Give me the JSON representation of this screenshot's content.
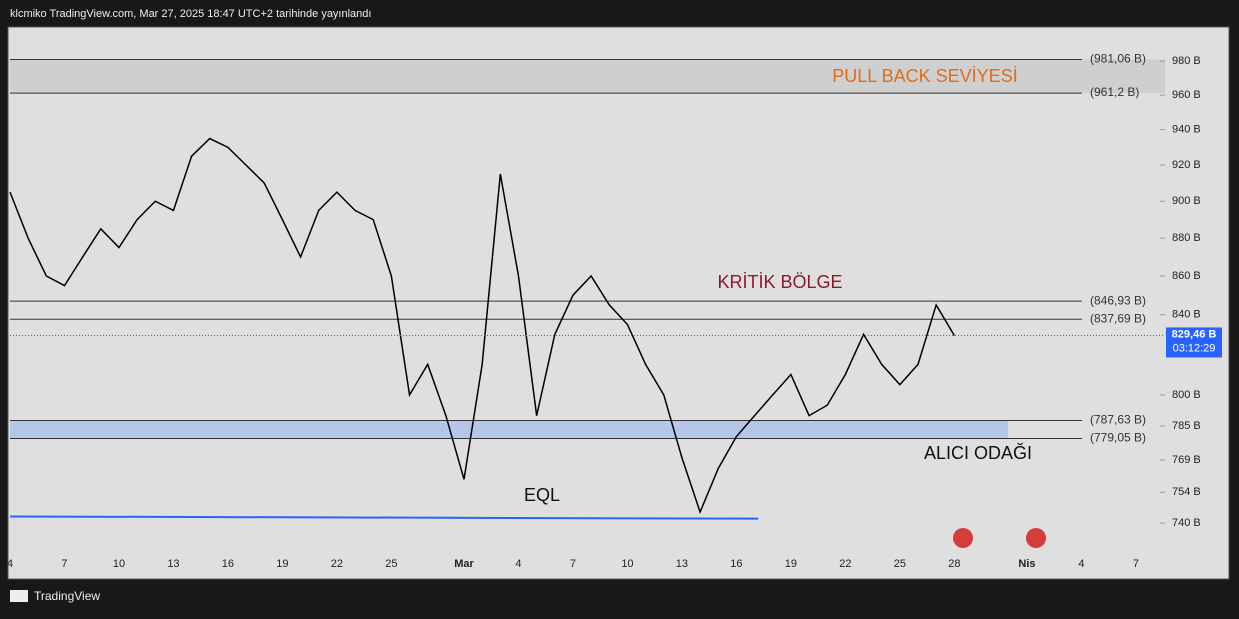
{
  "header": "klcmiko TradingView.com, Mar 27, 2025 18:47 UTC+2 tarihinde yayınlandı",
  "footer": "TradingView",
  "chart_data": {
    "type": "line",
    "color": "#000000",
    "x": [
      4,
      5,
      6,
      7,
      8,
      9,
      10,
      11,
      12,
      13,
      14,
      15,
      16,
      17,
      18,
      19,
      20,
      21,
      22,
      23,
      24,
      25,
      26,
      27,
      28,
      29,
      30,
      31,
      32,
      33,
      34,
      35,
      36,
      37,
      38,
      39,
      40,
      41,
      42,
      43,
      44,
      45,
      46,
      47,
      48,
      49,
      50,
      51,
      52,
      53,
      54,
      55,
      56
    ],
    "values": [
      905,
      880,
      860,
      855,
      870,
      885,
      875,
      890,
      900,
      895,
      925,
      935,
      930,
      920,
      910,
      890,
      870,
      895,
      905,
      895,
      890,
      860,
      800,
      815,
      790,
      760,
      815,
      915,
      860,
      790,
      830,
      850,
      860,
      845,
      835,
      815,
      800,
      770,
      745,
      765,
      780,
      790,
      800,
      810,
      790,
      795,
      810,
      830,
      815,
      805,
      815,
      845,
      829.46
    ],
    "xlim": [
      4,
      67.6
    ],
    "xticks": [
      4,
      7,
      10,
      13,
      16,
      19,
      22,
      25,
      {
        "value": 29,
        "label": "Mar"
      },
      {
        "value": 32,
        "label": "4"
      },
      {
        "value": 35,
        "label": "7"
      },
      {
        "value": 38,
        "label": "10"
      },
      {
        "value": 41,
        "label": "13"
      },
      {
        "value": 44,
        "label": "16"
      },
      {
        "value": 47,
        "label": "19"
      },
      {
        "value": 50,
        "label": "22"
      },
      {
        "value": 53,
        "label": "25"
      },
      {
        "value": 56,
        "label": "28"
      },
      {
        "value": 60,
        "label": "Nis"
      },
      {
        "value": 63,
        "label": "4"
      },
      {
        "value": 66,
        "label": "7"
      }
    ],
    "ylim": [
      728,
      1000
    ],
    "log_scale": true,
    "yticks": [
      {
        "value": 740,
        "label": "740 B"
      },
      {
        "value": 754,
        "label": "754 B"
      },
      {
        "value": 769,
        "label": "769 B"
      },
      {
        "value": 785,
        "label": "785 B"
      },
      {
        "value": 800,
        "label": "800 B"
      },
      {
        "value": 840,
        "label": "840 B"
      },
      {
        "value": 860,
        "label": "860 B"
      },
      {
        "value": 880,
        "label": "880 B"
      },
      {
        "value": 900,
        "label": "900 B"
      },
      {
        "value": 920,
        "label": "920 B"
      },
      {
        "value": 940,
        "label": "940 B"
      },
      {
        "value": 960,
        "label": "960 B"
      },
      {
        "value": 980,
        "label": "980 B"
      }
    ],
    "levels": [
      {
        "value": 981.06,
        "label": "(981,06 B)"
      },
      {
        "value": 961.2,
        "label": "(961,2 B)"
      },
      {
        "value": 846.93,
        "label": "(846,93 B)"
      },
      {
        "value": 837.69,
        "label": "(837,69 B)"
      },
      {
        "value": 787.63,
        "label": "(787,63 B)"
      },
      {
        "value": 779.05,
        "label": "(779,05 B)"
      }
    ],
    "eql": {
      "x": [
        4,
        45.2
      ],
      "values": [
        743,
        742
      ],
      "color": "#2962ff"
    },
    "last_price": {
      "value": 829.46,
      "label": "829,46 B",
      "countdown": "03:12:29",
      "color": "#2962ff"
    },
    "annotations": [
      "PULL BACK SEVİYESİ",
      "KRİTİK BÖLGE",
      "ALICI ODAĞI",
      "EQL"
    ]
  }
}
